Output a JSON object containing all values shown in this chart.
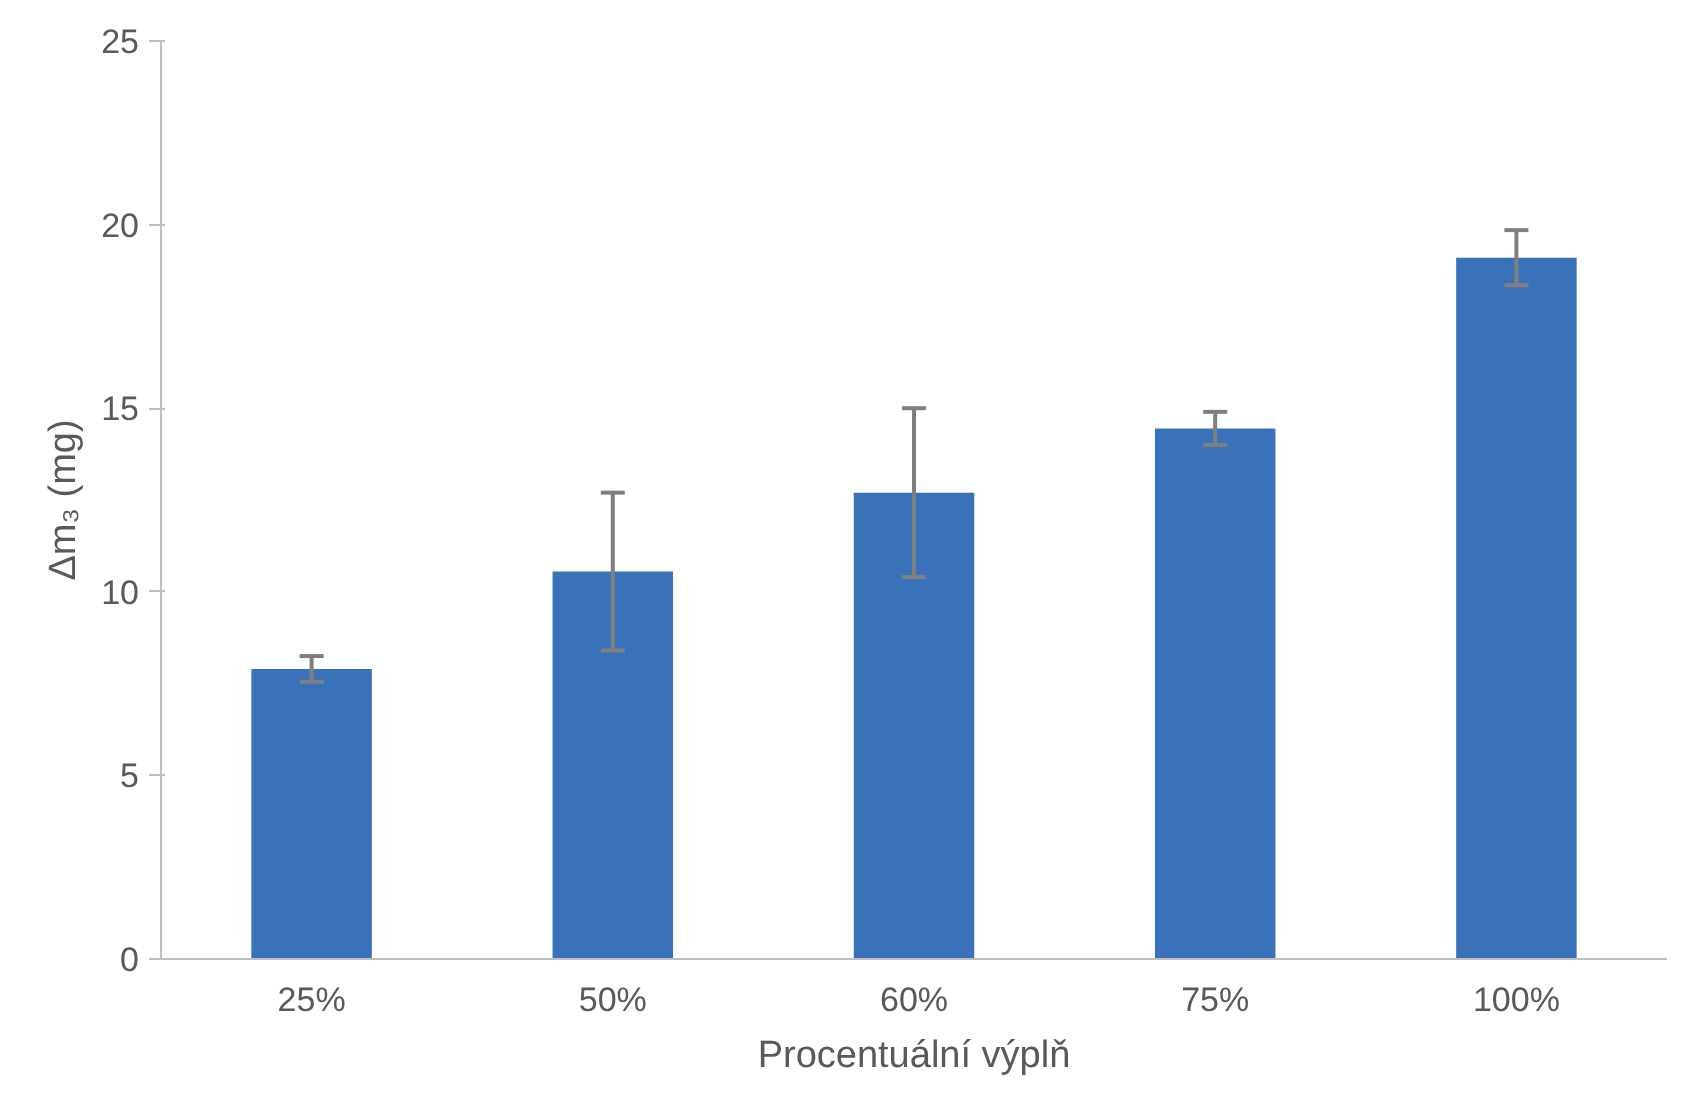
{
  "chart_data": {
    "type": "bar",
    "xlabel": "Procentuální výplň",
    "ylabel": "Δm₃ (mg)",
    "categories": [
      "25%",
      "50%",
      "60%",
      "75%",
      "100%"
    ],
    "values": [
      7.9,
      10.55,
      12.7,
      14.45,
      19.1
    ],
    "errors": [
      0.35,
      2.15,
      2.3,
      0.45,
      0.75
    ],
    "color": "#3a72b9",
    "ylim": [
      0,
      25
    ],
    "yticks": [
      0,
      5,
      10,
      15,
      20,
      25
    ],
    "grid": false
  }
}
